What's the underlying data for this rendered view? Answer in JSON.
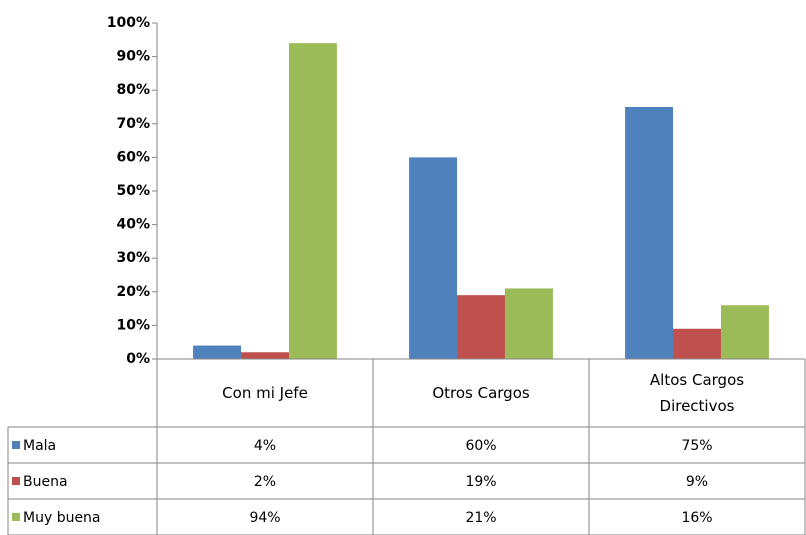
{
  "chart_data": {
    "type": "bar",
    "categories": [
      "Con mi Jefe",
      "Otros Cargos",
      "Altos Cargos Directivos"
    ],
    "series": [
      {
        "name": "Mala",
        "color": "#4f81bd",
        "values": [
          4,
          60,
          75
        ],
        "value_labels": [
          "4%",
          "60%",
          "75%"
        ]
      },
      {
        "name": "Buena",
        "color": "#c0504d",
        "values": [
          2,
          19,
          9
        ],
        "value_labels": [
          "2%",
          "19%",
          "9%"
        ]
      },
      {
        "name": "Muy buena",
        "color": "#9bbb59",
        "values": [
          94,
          21,
          16
        ],
        "value_labels": [
          "94%",
          "21%",
          "16%"
        ]
      }
    ],
    "ylim": [
      0,
      100
    ],
    "yticks": [
      {
        "value": 0,
        "label": "0%"
      },
      {
        "value": 10,
        "label": "10%"
      },
      {
        "value": 20,
        "label": "20%"
      },
      {
        "value": 30,
        "label": "30%"
      },
      {
        "value": 40,
        "label": "40%"
      },
      {
        "value": 50,
        "label": "50%"
      },
      {
        "value": 60,
        "label": "60%"
      },
      {
        "value": 70,
        "label": "70%"
      },
      {
        "value": 80,
        "label": "80%"
      },
      {
        "value": 90,
        "label": "90%"
      },
      {
        "value": 100,
        "label": "100%"
      }
    ],
    "grid": false,
    "data_table": true
  }
}
